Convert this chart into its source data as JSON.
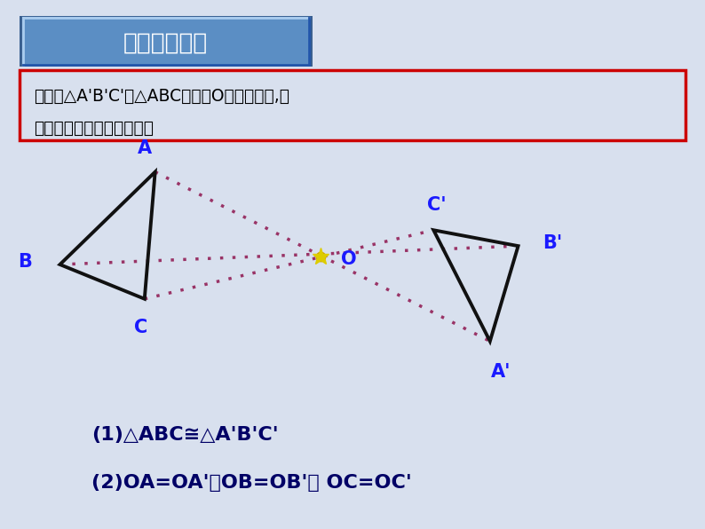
{
  "bg_color": "#d8e0ee",
  "title_text": "探索与发现：",
  "title_box_facecolor": "#5b8ec4",
  "title_box_edgecolor": "#3a6090",
  "title_box_inner_color": "#7aaed8",
  "question_text_line1": "下图中△A'B'C'与△ABC关于点O成中心对称,你",
  "question_text_line2": "能从图中得出哪些结论呢？",
  "question_box_color": "#cc0000",
  "triangle_ABC": {
    "A": [
      0.22,
      0.675
    ],
    "B": [
      0.085,
      0.5
    ],
    "C": [
      0.205,
      0.435
    ]
  },
  "triangle_A1B1C1": {
    "A1": [
      0.695,
      0.355
    ],
    "B1": [
      0.735,
      0.535
    ],
    "C1": [
      0.615,
      0.565
    ]
  },
  "O": [
    0.455,
    0.515
  ],
  "triangle_color": "#111111",
  "label_color": "#1a1aff",
  "dotted_color": "#993366",
  "O_dot_color": "#ddcc00",
  "O_ring_color": "#cc9900",
  "result1": "(1)△ABC≅△A'B'C'",
  "result2": "(2)OA=OA'、OB=OB'、 OC=OC'",
  "result_color": "#000066"
}
